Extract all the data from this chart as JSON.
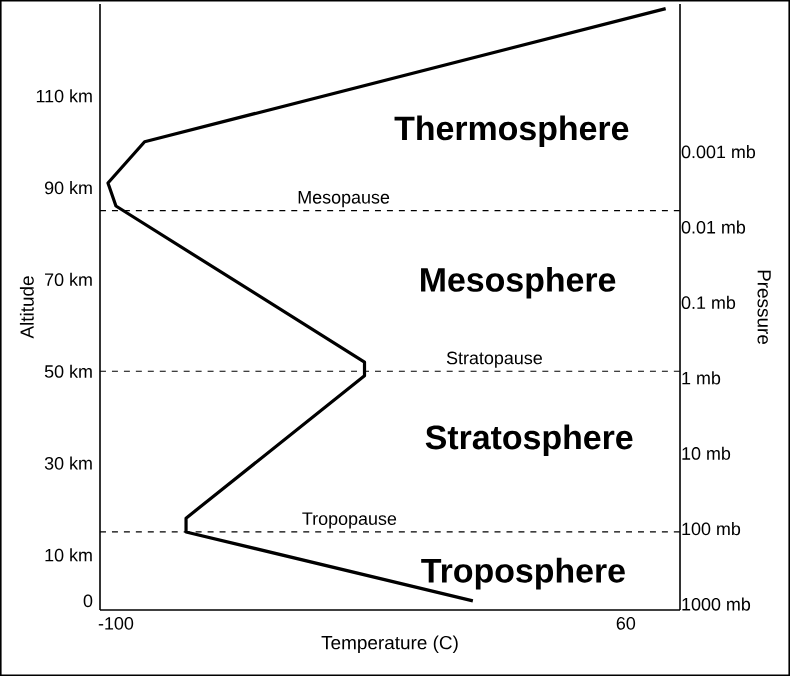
{
  "chart_data": {
    "type": "line",
    "xlabel": "Temperature (C)",
    "ylabel": "Altitude",
    "y2label": "Pressure",
    "x": [
      12,
      -78,
      -78,
      -22,
      -22,
      -100,
      -102.5,
      -91,
      72.5
    ],
    "values": [
      0,
      15,
      18,
      49,
      52,
      86,
      91,
      100,
      129
    ],
    "color": "#000000",
    "xlim": [
      -105,
      77
    ],
    "xticks": [
      -100,
      60
    ],
    "ylim": [
      -2,
      130
    ],
    "yticks": [
      0,
      {
        "value": 10,
        "label": "10 km"
      },
      {
        "value": 30,
        "label": "30 km"
      },
      {
        "value": 50,
        "label": "50 km"
      },
      {
        "value": 70,
        "label": "70 km"
      },
      {
        "value": 90,
        "label": "90 km"
      },
      {
        "value": 110,
        "label": "110 km"
      }
    ],
    "log": "y2",
    "y2lim": [
      1200,
      1.1e-05
    ],
    "y2ticks": [
      {
        "value": 1000,
        "label": "1000 mb"
      },
      {
        "value": 100,
        "label": "100 mb"
      },
      {
        "value": 10,
        "label": "10 mb"
      },
      {
        "value": 1,
        "label": "1 mb"
      },
      {
        "value": 0.1,
        "label": "0.1 mb"
      },
      {
        "value": 0.01,
        "label": "0.01 mb"
      },
      {
        "value": 0.001,
        "label": "0.001 mb"
      }
    ],
    "ref_lines": [
      {
        "axis": "y",
        "value": 15,
        "label": "Tropopause",
        "line_style": "dashed"
      },
      {
        "axis": "y",
        "value": 50,
        "label": "Stratopause",
        "line_style": "dashed"
      },
      {
        "axis": "y",
        "value": 85,
        "label": "Mesopause",
        "line_style": "dashed"
      }
    ],
    "annotations": [
      "Thermosphere",
      "Mesosphere",
      "Stratosphere",
      "Troposphere"
    ],
    "grid": false,
    "marker": "none",
    "line_style": "solid"
  }
}
